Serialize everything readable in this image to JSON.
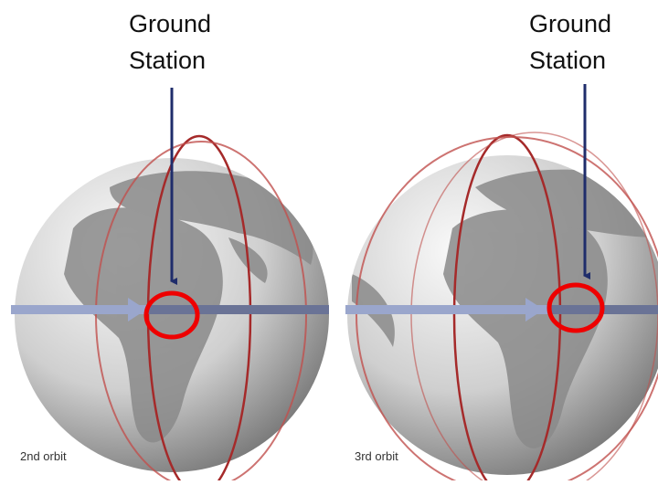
{
  "panels": [
    {
      "ground_station_label": [
        "Ground",
        "Station"
      ],
      "caption": "2nd orbit"
    },
    {
      "ground_station_label": [
        "Ground",
        "Station"
      ],
      "caption": "3rd orbit"
    }
  ]
}
